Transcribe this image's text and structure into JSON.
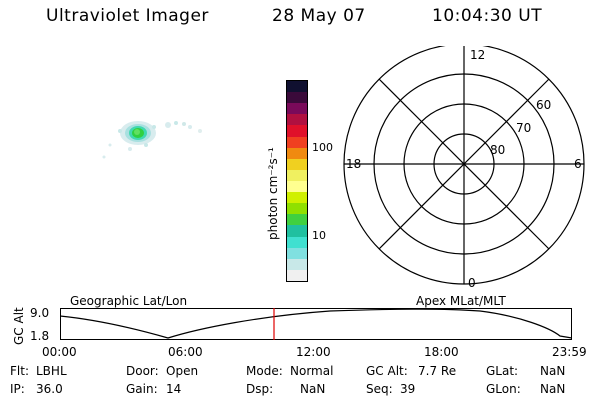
{
  "header": {
    "title": "Ultraviolet Imager",
    "date": "28 May 07",
    "time": "10:04:30 UT"
  },
  "colorbar": {
    "unit_label": "photon cm⁻²s⁻¹",
    "tick_labels": [
      "100",
      "10"
    ],
    "colors": [
      "#101030",
      "#3a0a3a",
      "#7a0a5a",
      "#b01040",
      "#e0102a",
      "#f04020",
      "#f08a10",
      "#f0d020",
      "#f0f060",
      "#ffff90",
      "#d0f000",
      "#90e000",
      "#40d040",
      "#20c0a0",
      "#40e0d0",
      "#80e0e0",
      "#c8e8e8",
      "#f0f0f0"
    ]
  },
  "polar_plot": {
    "mlt_labels": [
      "12",
      "18",
      "6",
      "0"
    ],
    "lat_labels": [
      "60",
      "70",
      "80"
    ]
  },
  "orbit_panel": {
    "ylabel": "GC Alt",
    "left_title": "Geographic Lat/Lon",
    "right_title": "Apex MLat/MLT",
    "y_ticks": [
      "9.0",
      "1.8"
    ],
    "time_ticks": [
      "00:00",
      "06:00",
      "12:00",
      "18:00",
      "23:59"
    ],
    "current_time_fraction": 0.418,
    "marker_color": "#e00000"
  },
  "status": {
    "row1": [
      {
        "label": "Flt:",
        "value": "LBHL"
      },
      {
        "label": "Door:",
        "value": "Open"
      },
      {
        "label": "Mode:",
        "value": "Normal"
      },
      {
        "label": "GC Alt:",
        "value": "7.7 Re"
      },
      {
        "label": "GLat:",
        "value": "NaN"
      }
    ],
    "row2": [
      {
        "label": "IP:",
        "value": "36.0"
      },
      {
        "label": "Gain:",
        "value": "14"
      },
      {
        "label": "Dsp:",
        "value": "NaN"
      },
      {
        "label": "Seq:",
        "value": "39"
      },
      {
        "label": "GLon:",
        "value": "NaN"
      }
    ]
  }
}
